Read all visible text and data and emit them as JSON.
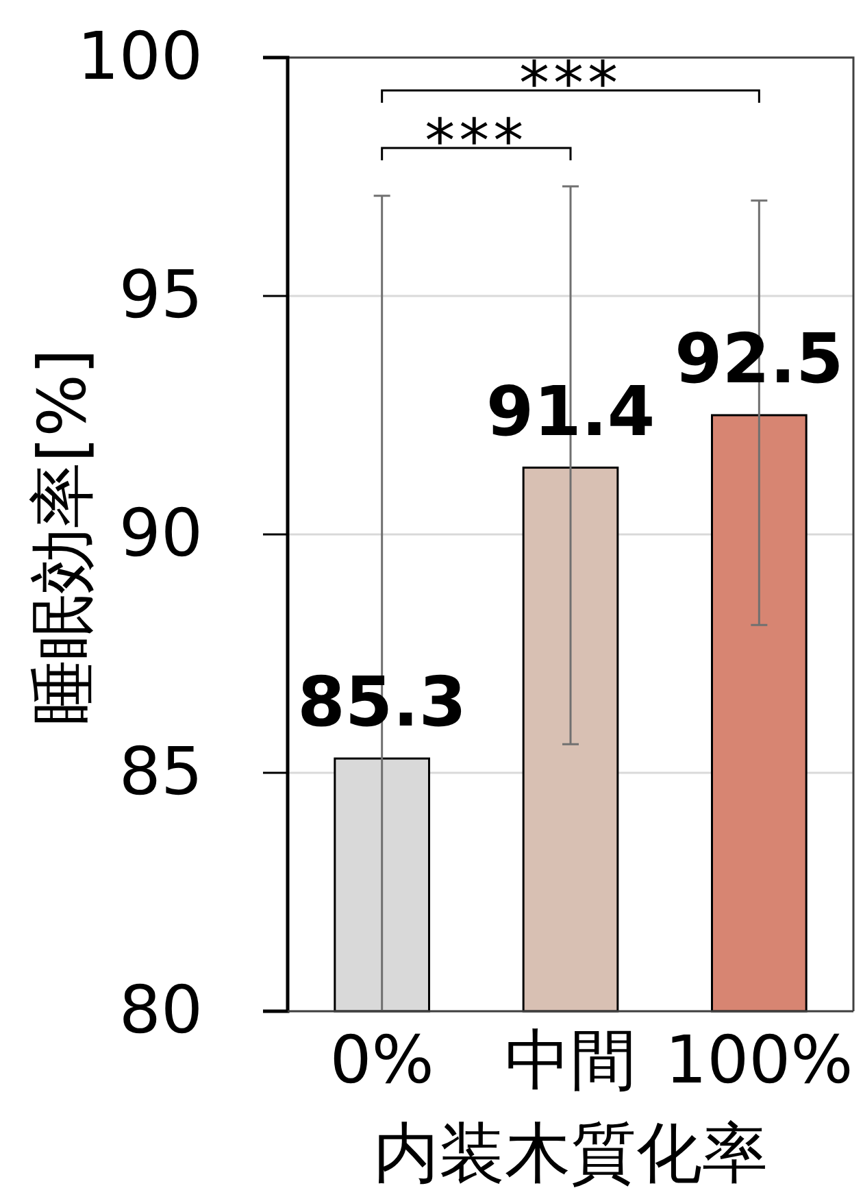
{
  "chart_data": {
    "type": "bar",
    "xlabel": "内装木質化率",
    "ylabel": "睡眠効率[%]",
    "categories": [
      "0%",
      "中間",
      "100%"
    ],
    "values": [
      85.3,
      91.4,
      92.5
    ],
    "colors": [
      "#d9d9d9",
      "#d8c0b3",
      "#d78572"
    ],
    "errors": [
      [
        80,
        97.1
      ],
      [
        85.6,
        97.3
      ],
      [
        88.1,
        97.0
      ]
    ],
    "data_labels": true,
    "ylim": [
      80,
      100
    ],
    "yticks": [
      80,
      85,
      90,
      95,
      100
    ],
    "grid": "y",
    "annotations": [
      "***",
      "***"
    ]
  }
}
